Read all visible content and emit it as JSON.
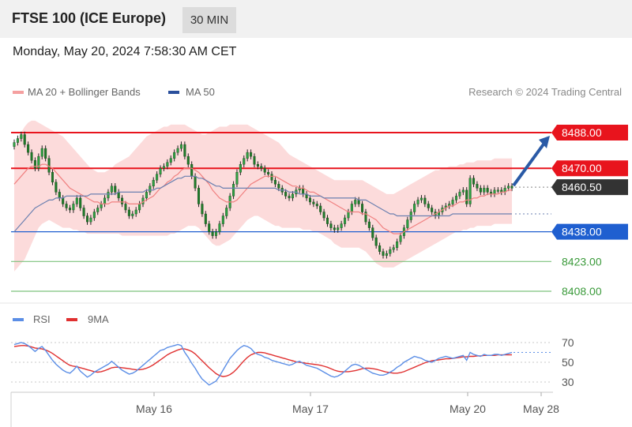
{
  "header": {
    "title": "FTSE 100 (ICE Europe)",
    "interval": "30 MIN"
  },
  "timestamp": "Monday, May 20, 2024 7:58:30 AM CET",
  "legend": {
    "ma20": "MA 20 + Bollinger Bands",
    "ma50": "MA 50",
    "rsi": "RSI",
    "ma9": "9MA"
  },
  "credit": "Research © 2024 Trading Central",
  "colors": {
    "resistance": "#e8141d",
    "support": "#1f5fd0",
    "target": "#3aa13a",
    "arrow": "#2a5aa6",
    "candle_up": "#2ea043",
    "candle_down": "#1f7a2a",
    "band": "#fbd2d2",
    "ma20": "#f08080",
    "ma50": "#6b80b0",
    "rsi": "#5b8ee6",
    "rsi_ma": "#e03030"
  },
  "chart_data": [
    {
      "type": "candlestick",
      "title": "",
      "x_labels": [
        "May 16",
        "May 17",
        "May 20",
        "May 28"
      ],
      "ylim": [
        8400,
        8497
      ],
      "last_price": 8460.5,
      "levels": [
        {
          "label": "8488.00",
          "value": 8488,
          "kind": "resistance"
        },
        {
          "label": "8470.00",
          "value": 8470,
          "kind": "resistance"
        },
        {
          "label": "8460.50",
          "value": 8460.5,
          "kind": "last"
        },
        {
          "label": "8438.00",
          "value": 8438,
          "kind": "support"
        },
        {
          "label": "8423.00",
          "value": 8423,
          "kind": "target"
        },
        {
          "label": "8408.00",
          "value": 8408,
          "kind": "target"
        }
      ],
      "close": [
        8483,
        8485,
        8487,
        8482,
        8478,
        8474,
        8470,
        8476,
        8480,
        8475,
        8468,
        8463,
        8458,
        8455,
        8452,
        8450,
        8449,
        8452,
        8455,
        8450,
        8446,
        8443,
        8445,
        8448,
        8450,
        8452,
        8455,
        8458,
        8461,
        8458,
        8455,
        8452,
        8449,
        8446,
        8447,
        8449,
        8452,
        8455,
        8458,
        8461,
        8464,
        8467,
        8470,
        8471,
        8473,
        8475,
        8478,
        8480,
        8482,
        8476,
        8472,
        8466,
        8460,
        8452,
        8447,
        8442,
        8438,
        8436,
        8438,
        8442,
        8446,
        8450,
        8456,
        8462,
        8468,
        8472,
        8475,
        8478,
        8476,
        8472,
        8471,
        8470,
        8468,
        8467,
        8464,
        8462,
        8460,
        8458,
        8456,
        8455,
        8457,
        8459,
        8460,
        8457,
        8455,
        8453,
        8452,
        8451,
        8448,
        8445,
        8442,
        8440,
        8439,
        8440,
        8442,
        8445,
        8448,
        8452,
        8454,
        8452,
        8448,
        8443,
        8440,
        8435,
        8431,
        8428,
        8426,
        8427,
        8429,
        8430,
        8433,
        8436,
        8440,
        8444,
        8448,
        8452,
        8454,
        8455,
        8452,
        8450,
        8448,
        8446,
        8448,
        8450,
        8451,
        8452,
        8454,
        8456,
        8458,
        8459,
        8452,
        8465,
        8462,
        8460,
        8458,
        8460,
        8458,
        8457,
        8459,
        8459,
        8458,
        8460,
        8461,
        8460
      ],
      "ma20": [
        8462,
        8464,
        8466,
        8468,
        8470,
        8471,
        8471,
        8471,
        8472,
        8472,
        8471,
        8470,
        8468,
        8466,
        8464,
        8462,
        8460,
        8459,
        8458,
        8457,
        8456,
        8455,
        8454,
        8453,
        8453,
        8452,
        8452,
        8452,
        8453,
        8453,
        8453,
        8453,
        8453,
        8452,
        8452,
        8452,
        8452,
        8453,
        8454,
        8455,
        8456,
        8458,
        8460,
        8461,
        8463,
        8464,
        8466,
        8467,
        8469,
        8470,
        8470,
        8470,
        8469,
        8468,
        8466,
        8464,
        8462,
        8459,
        8457,
        8455,
        8454,
        8453,
        8453,
        8453,
        8454,
        8456,
        8458,
        8460,
        8462,
        8463,
        8464,
        8465,
        8466,
        8466,
        8466,
        8466,
        8465,
        8464,
        8463,
        8462,
        8461,
        8461,
        8460,
        8460,
        8459,
        8458,
        8458,
        8457,
        8456,
        8455,
        8454,
        8453,
        8452,
        8451,
        8450,
        8449,
        8448,
        8448,
        8448,
        8448,
        8447,
        8447,
        8446,
        8445,
        8444,
        8442,
        8440,
        8439,
        8438,
        8437,
        8437,
        8437,
        8438,
        8439,
        8440,
        8441,
        8442,
        8443,
        8444,
        8445,
        8446,
        8447,
        8448,
        8449,
        8450,
        8451,
        8451,
        8452,
        8453,
        8453,
        8454,
        8454,
        8455,
        8455,
        8456,
        8456,
        8457,
        8457,
        8457,
        8457,
        8458,
        8458,
        8459,
        8459
      ],
      "ma50": [
        8438,
        8440,
        8442,
        8444,
        8446,
        8448,
        8450,
        8451,
        8452,
        8453,
        8454,
        8454,
        8455,
        8455,
        8455,
        8456,
        8456,
        8456,
        8456,
        8456,
        8456,
        8456,
        8457,
        8457,
        8457,
        8457,
        8457,
        8457,
        8457,
        8457,
        8458,
        8458,
        8458,
        8458,
        8458,
        8458,
        8458,
        8458,
        8459,
        8459,
        8459,
        8460,
        8460,
        8461,
        8462,
        8463,
        8464,
        8465,
        8465,
        8466,
        8466,
        8466,
        8466,
        8465,
        8465,
        8464,
        8463,
        8462,
        8461,
        8461,
        8460,
        8460,
        8460,
        8460,
        8460,
        8460,
        8460,
        8460,
        8460,
        8460,
        8460,
        8460,
        8460,
        8460,
        8460,
        8460,
        8459,
        8459,
        8459,
        8458,
        8458,
        8458,
        8457,
        8457,
        8457,
        8456,
        8456,
        8456,
        8456,
        8455,
        8455,
        8455,
        8455,
        8455,
        8455,
        8455,
        8455,
        8455,
        8455,
        8454,
        8454,
        8454,
        8453,
        8452,
        8451,
        8450,
        8449,
        8448,
        8447,
        8447,
        8446,
        8446,
        8446,
        8446,
        8446,
        8446,
        8446,
        8446,
        8446,
        8446,
        8446,
        8446,
        8446,
        8446,
        8446,
        8446,
        8447,
        8447,
        8447,
        8447,
        8447,
        8447,
        8447,
        8447,
        8447,
        8447,
        8447,
        8447,
        8447,
        8447,
        8447,
        8447,
        8447,
        8447
      ],
      "bb_upper": [
        8480,
        8484,
        8488,
        8491,
        8493,
        8494,
        8494,
        8493,
        8492,
        8491,
        8490,
        8489,
        8488,
        8487,
        8486,
        8484,
        8482,
        8480,
        8478,
        8476,
        8474,
        8472,
        8470,
        8469,
        8468,
        8468,
        8468,
        8469,
        8470,
        8472,
        8473,
        8474,
        8475,
        8476,
        8478,
        8480,
        8482,
        8484,
        8486,
        8487,
        8488,
        8489,
        8490,
        8491,
        8491,
        8492,
        8492,
        8492,
        8492,
        8492,
        8491,
        8490,
        8489,
        8488,
        8487,
        8487,
        8488,
        8489,
        8490,
        8491,
        8491,
        8491,
        8492,
        8492,
        8492,
        8492,
        8492,
        8492,
        8491,
        8490,
        8489,
        8488,
        8487,
        8486,
        8485,
        8484,
        8483,
        8481,
        8479,
        8477,
        8476,
        8475,
        8474,
        8473,
        8472,
        8471,
        8470,
        8469,
        8468,
        8467,
        8466,
        8465,
        8464,
        8464,
        8464,
        8464,
        8464,
        8464,
        8464,
        8464,
        8464,
        8463,
        8462,
        8461,
        8460,
        8459,
        8458,
        8457,
        8457,
        8457,
        8458,
        8459,
        8460,
        8461,
        8462,
        8463,
        8464,
        8465,
        8466,
        8467,
        8468,
        8469,
        8469,
        8470,
        8470,
        8471,
        8471,
        8471,
        8472,
        8472,
        8473,
        8473,
        8473,
        8474,
        8474,
        8474,
        8474,
        8474,
        8475,
        8475,
        8475,
        8475,
        8475,
        8475
      ],
      "bb_lower": [
        8418,
        8420,
        8422,
        8424,
        8428,
        8432,
        8436,
        8440,
        8442,
        8443,
        8444,
        8443,
        8442,
        8441,
        8440,
        8440,
        8440,
        8439,
        8439,
        8438,
        8438,
        8437,
        8437,
        8437,
        8437,
        8437,
        8437,
        8437,
        8437,
        8437,
        8437,
        8436,
        8436,
        8436,
        8436,
        8436,
        8436,
        8436,
        8436,
        8436,
        8436,
        8436,
        8436,
        8436,
        8436,
        8437,
        8437,
        8438,
        8439,
        8440,
        8441,
        8441,
        8441,
        8440,
        8438,
        8436,
        8434,
        8432,
        8431,
        8431,
        8432,
        8433,
        8434,
        8436,
        8438,
        8440,
        8442,
        8444,
        8445,
        8446,
        8446,
        8445,
        8444,
        8443,
        8442,
        8441,
        8441,
        8440,
        8440,
        8440,
        8440,
        8440,
        8440,
        8439,
        8439,
        8439,
        8438,
        8438,
        8437,
        8436,
        8435,
        8434,
        8432,
        8431,
        8430,
        8430,
        8430,
        8430,
        8430,
        8430,
        8429,
        8428,
        8426,
        8424,
        8422,
        8421,
        8420,
        8420,
        8420,
        8420,
        8421,
        8422,
        8423,
        8424,
        8425,
        8426,
        8427,
        8428,
        8429,
        8430,
        8431,
        8432,
        8433,
        8434,
        8435,
        8436,
        8437,
        8438,
        8438,
        8439,
        8439,
        8440,
        8440,
        8441,
        8441,
        8441,
        8441,
        8441,
        8442,
        8442,
        8442,
        8442,
        8442,
        8442
      ]
    },
    {
      "type": "line",
      "title": "",
      "ylim": [
        20,
        80
      ],
      "yticks": [
        "70",
        "50",
        "30"
      ],
      "rsi": [
        68,
        69,
        70,
        69,
        67,
        64,
        61,
        64,
        66,
        62,
        57,
        52,
        48,
        45,
        42,
        40,
        39,
        42,
        46,
        41,
        38,
        35,
        37,
        40,
        42,
        44,
        46,
        48,
        51,
        48,
        45,
        42,
        40,
        38,
        39,
        41,
        44,
        47,
        50,
        53,
        56,
        59,
        62,
        63,
        65,
        66,
        67,
        68,
        67,
        60,
        55,
        49,
        44,
        38,
        33,
        30,
        27,
        29,
        31,
        36,
        42,
        48,
        54,
        58,
        62,
        65,
        67,
        66,
        64,
        60,
        58,
        57,
        55,
        54,
        52,
        51,
        50,
        49,
        48,
        47,
        48,
        50,
        51,
        49,
        47,
        46,
        45,
        44,
        42,
        40,
        38,
        36,
        35,
        36,
        38,
        41,
        44,
        47,
        48,
        47,
        45,
        43,
        41,
        39,
        38,
        37,
        37,
        38,
        40,
        42,
        45,
        47,
        50,
        52,
        54,
        56,
        55,
        54,
        52,
        51,
        50,
        52,
        54,
        55,
        56,
        55,
        54,
        55,
        56,
        57,
        52,
        60,
        58,
        57,
        56,
        58,
        57,
        57,
        58,
        58,
        57,
        58,
        59,
        60
      ],
      "rsi_ma": [
        66,
        66.5,
        67,
        67,
        66.5,
        65.5,
        64.5,
        64,
        63.5,
        62.5,
        61,
        59,
        56.5,
        54,
        51.5,
        49,
        47,
        46,
        45.5,
        44.5,
        43.5,
        42.5,
        41.5,
        40.5,
        40,
        40.5,
        41.5,
        43,
        44.5,
        45,
        45,
        44.5,
        44,
        43.5,
        43,
        42.5,
        42.5,
        43,
        44,
        45.5,
        47.5,
        50,
        52.5,
        55,
        57.5,
        59.5,
        61,
        62.5,
        63.5,
        63.5,
        62.5,
        61,
        58.5,
        55,
        51.5,
        48,
        44.5,
        41.5,
        38.5,
        36.5,
        35.5,
        36,
        37.5,
        40,
        43.5,
        47.5,
        51.5,
        55,
        57.5,
        59,
        60,
        60,
        59.5,
        58.5,
        57.5,
        56.5,
        55.5,
        54.5,
        53.5,
        52.5,
        51.5,
        50.5,
        50,
        49.5,
        49,
        48.5,
        48,
        47.5,
        47,
        46,
        45,
        43.5,
        42,
        41,
        40.5,
        40.5,
        40.5,
        41,
        41.5,
        42.5,
        43.5,
        44,
        44,
        43.5,
        43,
        42,
        41,
        40,
        39.5,
        39,
        39,
        39.5,
        40.5,
        42,
        43.5,
        45,
        46.5,
        48,
        49.5,
        50.5,
        51.5,
        52,
        52.5,
        53,
        53.5,
        53.5,
        54,
        54.5,
        55,
        55.5,
        55.5,
        56,
        56,
        56.5,
        56.5,
        57,
        57,
        57,
        57,
        57.5,
        57.5,
        57.5,
        57.5,
        57.5
      ]
    }
  ]
}
